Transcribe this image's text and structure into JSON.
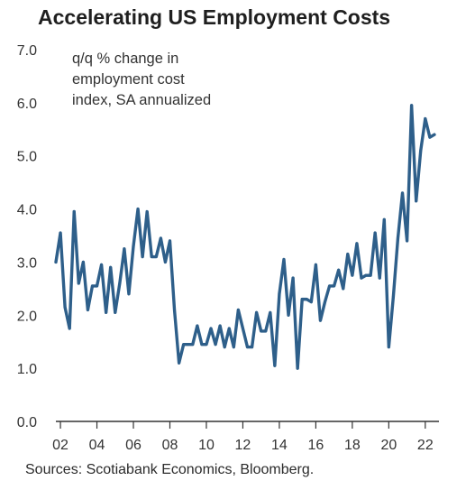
{
  "chart_data": {
    "type": "line",
    "title": "Accelerating US Employment Costs",
    "annotation": [
      "q/q % change in",
      "employment cost",
      "index, SA annualized"
    ],
    "source": "Sources: Scotiabank Economics, Bloomberg.",
    "xlabel": "",
    "ylabel": "",
    "ylim": [
      0,
      7
    ],
    "xlim": [
      2001.75,
      2022.75
    ],
    "y_ticks": [
      "0.0",
      "1.0",
      "2.0",
      "3.0",
      "4.0",
      "5.0",
      "6.0",
      "7.0"
    ],
    "x_ticks": [
      "02",
      "04",
      "06",
      "08",
      "10",
      "12",
      "14",
      "16",
      "18",
      "20",
      "22"
    ],
    "grid": false,
    "line_color": "#2e5f8a",
    "series": [
      {
        "x": [
          2001.75,
          2002.0,
          2002.25,
          2002.5,
          2002.75,
          2003.0,
          2003.25,
          2003.5,
          2003.75,
          2004.0,
          2004.25,
          2004.5,
          2004.75,
          2005.0,
          2005.25,
          2005.5,
          2005.75,
          2006.0,
          2006.25,
          2006.5,
          2006.75,
          2007.0,
          2007.25,
          2007.5,
          2007.75,
          2008.0,
          2008.25,
          2008.5,
          2008.75,
          2009.0,
          2009.25,
          2009.5,
          2009.75,
          2010.0,
          2010.25,
          2010.5,
          2010.75,
          2011.0,
          2011.25,
          2011.5,
          2011.75,
          2012.0,
          2012.25,
          2012.5,
          2012.75,
          2013.0,
          2013.25,
          2013.5,
          2013.75,
          2014.0,
          2014.25,
          2014.5,
          2014.75,
          2015.0,
          2015.25,
          2015.5,
          2015.75,
          2016.0,
          2016.25,
          2016.5,
          2016.75,
          2017.0,
          2017.25,
          2017.5,
          2017.75,
          2018.0,
          2018.25,
          2018.5,
          2018.75,
          2019.0,
          2019.25,
          2019.5,
          2019.75,
          2020.0,
          2020.25,
          2020.5,
          2020.75,
          2021.0,
          2021.25,
          2021.5,
          2021.75,
          2022.0,
          2022.25,
          2022.5
        ],
        "values": [
          3.0,
          3.55,
          2.15,
          1.75,
          3.95,
          2.6,
          3.0,
          2.1,
          2.55,
          2.55,
          2.95,
          2.05,
          2.9,
          2.05,
          2.6,
          3.25,
          2.4,
          3.3,
          4.0,
          3.1,
          3.95,
          3.1,
          3.1,
          3.45,
          3.0,
          3.4,
          2.1,
          1.1,
          1.45,
          1.45,
          1.45,
          1.8,
          1.45,
          1.45,
          1.75,
          1.45,
          1.8,
          1.4,
          1.75,
          1.4,
          2.1,
          1.75,
          1.4,
          1.4,
          2.05,
          1.7,
          1.7,
          2.05,
          1.05,
          2.4,
          3.05,
          2.0,
          2.7,
          1.0,
          2.3,
          2.3,
          2.25,
          2.95,
          1.9,
          2.25,
          2.55,
          2.55,
          2.85,
          2.5,
          3.15,
          2.75,
          3.35,
          2.7,
          2.75,
          2.75,
          3.55,
          2.7,
          3.8,
          1.4,
          2.35,
          3.45,
          4.3,
          3.4,
          5.95,
          4.15,
          5.1,
          5.7,
          5.35,
          5.4
        ]
      }
    ]
  }
}
